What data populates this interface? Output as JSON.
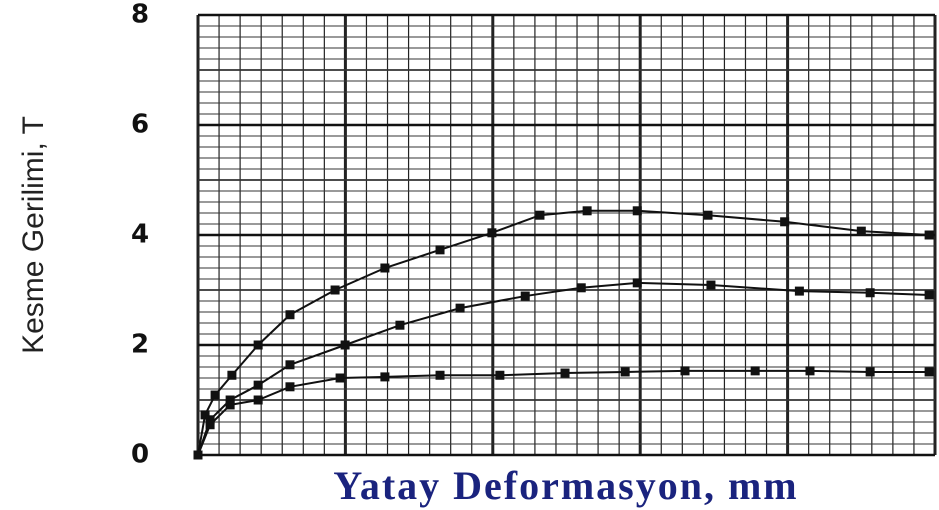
{
  "chart_data": {
    "type": "line",
    "y_label": "Kesme Gerilimi, T",
    "x_label": "Yatay Deformasyon, mm",
    "xlim": [
      0,
      25
    ],
    "ylim": [
      0,
      8
    ],
    "yticks": [
      0,
      2,
      4,
      6,
      8
    ],
    "grid": true,
    "series": [
      {
        "color": "#111111",
        "x": [
          0,
          0.24,
          0.58,
          1.15,
          2.04,
          3.12,
          4.65,
          6.34,
          8.21,
          9.97,
          11.6,
          13.2,
          14.9,
          17.3,
          19.9,
          22.5,
          24.8
        ],
        "values": [
          0,
          0.73,
          1.09,
          1.45,
          2.0,
          2.55,
          3.0,
          3.4,
          3.73,
          4.04,
          4.36,
          4.44,
          4.44,
          4.36,
          4.24,
          4.07,
          4.0
        ]
      },
      {
        "color": "#111111",
        "x": [
          0,
          0.41,
          1.09,
          2.04,
          3.12,
          4.99,
          6.85,
          8.89,
          11.1,
          13.0,
          14.9,
          17.4,
          20.4,
          22.8,
          24.8
        ],
        "values": [
          0,
          0.64,
          1.0,
          1.27,
          1.64,
          2.0,
          2.36,
          2.67,
          2.89,
          3.04,
          3.13,
          3.09,
          2.98,
          2.95,
          2.91
        ]
      },
      {
        "color": "#111111",
        "x": [
          0,
          0.41,
          1.09,
          2.04,
          3.12,
          4.82,
          6.34,
          8.21,
          10.24,
          12.45,
          14.49,
          16.52,
          18.9,
          20.76,
          22.8,
          24.8
        ],
        "values": [
          0,
          0.55,
          0.91,
          1.0,
          1.24,
          1.4,
          1.42,
          1.45,
          1.45,
          1.49,
          1.51,
          1.53,
          1.53,
          1.53,
          1.51,
          1.51
        ]
      }
    ]
  }
}
